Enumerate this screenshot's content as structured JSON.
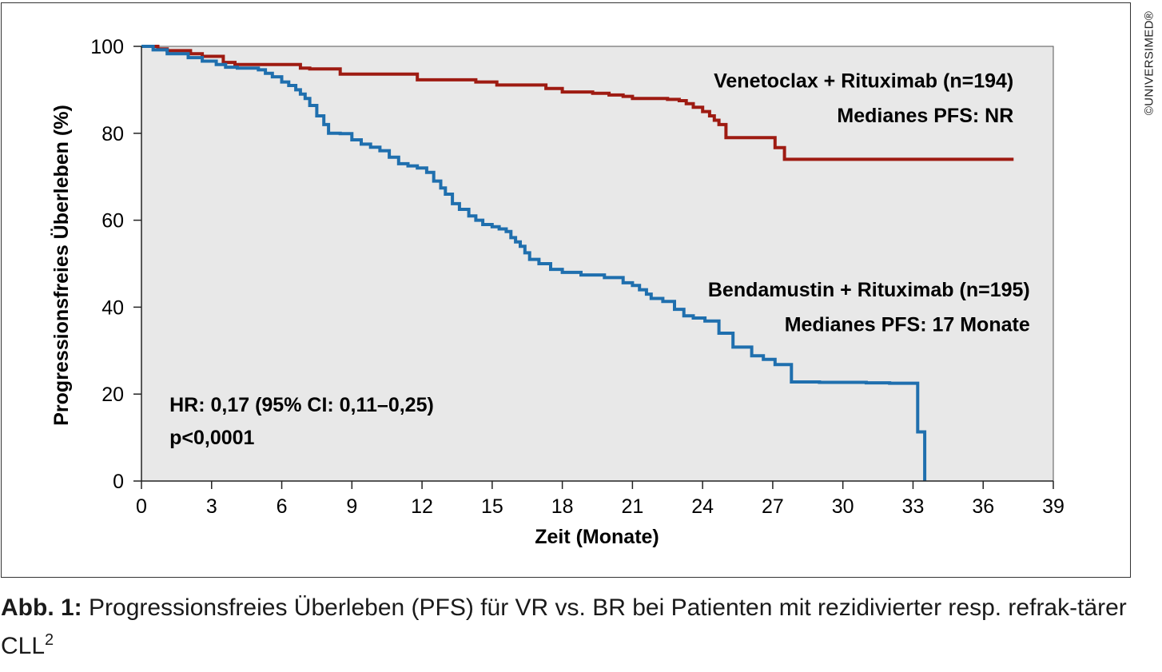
{
  "copyright": "©UNIVERSIMED®",
  "caption": {
    "label": "Abb. 1:",
    "text": " Progressionsfreies Überleben (PFS) für VR vs. BR bei Patienten mit rezidivierter resp. refrak-tärer CLL",
    "superscript": "2"
  },
  "chart_data": {
    "type": "line",
    "step": true,
    "xlabel": "Zeit (Monate)",
    "ylabel": "Progressionsfreies Überleben (%)",
    "xlim": [
      0,
      39
    ],
    "ylim": [
      0,
      100
    ],
    "xticks": [
      0,
      3,
      6,
      9,
      12,
      15,
      18,
      21,
      24,
      27,
      30,
      33,
      36,
      39
    ],
    "yticks": [
      0,
      20,
      40,
      60,
      80,
      100
    ],
    "grid": false,
    "plot_background": "#e8e8e8",
    "annotations": [
      {
        "text": "Venetoclax + Rituximab (n=194)",
        "x": 37.3,
        "y": 90.5,
        "align": "end"
      },
      {
        "text": "Medianes PFS: NR",
        "x": 37.3,
        "y": 82.5,
        "align": "end"
      },
      {
        "text": "Bendamustin + Rituximab (n=195)",
        "x": 38.0,
        "y": 42.5,
        "align": "end"
      },
      {
        "text": "Medianes PFS: 17 Monate",
        "x": 38.0,
        "y": 34.5,
        "align": "end"
      },
      {
        "text": "HR: 0,17 (95% CI: 0,11–0,25)",
        "x": 1.2,
        "y": 16.0,
        "align": "start"
      },
      {
        "text": "p<0,0001",
        "x": 1.2,
        "y": 8.5,
        "align": "start"
      }
    ],
    "series": [
      {
        "name": "Venetoclax + Rituximab (n=194)",
        "color": "#9e1b12",
        "x": [
          0,
          0.7,
          1.1,
          2.1,
          2.6,
          3.5,
          4.0,
          6.8,
          7.2,
          8.5,
          11.8,
          14.3,
          15.2,
          17.3,
          18.0,
          19.3,
          20.0,
          20.6,
          21.0,
          22.5,
          23.0,
          23.3,
          23.6,
          24.0,
          24.3,
          24.5,
          24.7,
          25.0,
          27.1,
          27.5,
          37.3
        ],
        "y": [
          100,
          99.4,
          99.0,
          98.3,
          97.7,
          96.3,
          95.8,
          95.0,
          94.8,
          93.6,
          92.3,
          91.8,
          91.1,
          90.3,
          89.5,
          89.2,
          88.8,
          88.5,
          88.0,
          87.8,
          87.5,
          86.8,
          86.0,
          85.0,
          84.0,
          83.0,
          82.0,
          79.0,
          76.7,
          74.0,
          74.0
        ]
      },
      {
        "name": "Bendamustin + Rituximab (n=195)",
        "color": "#1f6fae",
        "x": [
          0,
          0.5,
          1.1,
          2.0,
          2.6,
          3.2,
          3.6,
          4.1,
          5.0,
          5.3,
          5.6,
          6.0,
          6.3,
          6.6,
          6.8,
          7.0,
          7.2,
          7.5,
          7.8,
          8.0,
          8.2,
          8.5,
          9.0,
          9.4,
          9.8,
          10.2,
          10.6,
          11.0,
          11.4,
          11.8,
          12.2,
          12.5,
          12.8,
          13.0,
          13.3,
          13.6,
          14.0,
          14.3,
          14.6,
          15.0,
          15.3,
          15.6,
          15.8,
          16.0,
          16.2,
          16.4,
          16.6,
          17.0,
          17.5,
          18.0,
          18.8,
          19.8,
          20.6,
          21.0,
          21.3,
          21.6,
          21.8,
          22.3,
          22.8,
          23.2,
          23.6,
          24.1,
          24.7,
          25.3,
          26.1,
          26.6,
          27.1,
          27.8,
          29.0,
          31.0,
          32.0,
          33.2,
          33.5
        ],
        "y": [
          100,
          99.2,
          98.3,
          97.4,
          96.6,
          95.8,
          95.2,
          95.0,
          94.6,
          93.8,
          93.0,
          91.8,
          91.0,
          90.0,
          89.0,
          88.0,
          86.4,
          84.0,
          82.0,
          80.0,
          80.0,
          79.9,
          78.5,
          77.5,
          76.8,
          76.0,
          74.5,
          73.0,
          72.5,
          72.0,
          71.0,
          69.0,
          67.4,
          66.0,
          63.8,
          62.5,
          61.0,
          60.0,
          59.0,
          58.5,
          58.0,
          57.4,
          56.0,
          55.0,
          54.0,
          52.5,
          51.0,
          50.0,
          48.7,
          48.0,
          47.4,
          46.8,
          45.6,
          45.0,
          44.0,
          43.0,
          42.0,
          41.3,
          39.5,
          38.0,
          37.5,
          36.8,
          34.0,
          30.8,
          28.8,
          28.0,
          26.8,
          22.8,
          22.7,
          22.6,
          22.5,
          11.3,
          0
        ]
      }
    ]
  }
}
